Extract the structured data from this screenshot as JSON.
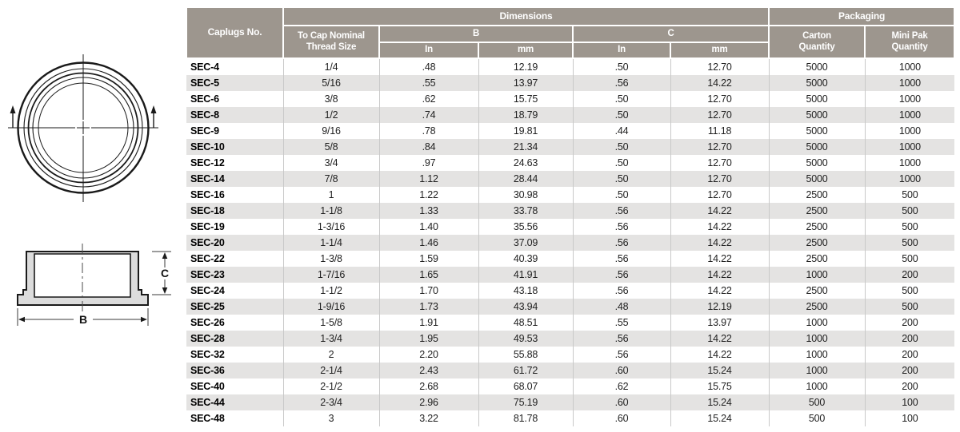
{
  "colors": {
    "header_bg": "#9d968e",
    "header_text": "#ffffff",
    "stripe": "#e4e3e2",
    "gridline": "#c9c9c9",
    "drawing_fill": "#dcdcdc"
  },
  "table": {
    "header": {
      "caplugs_no": "Caplugs No.",
      "dimensions": "Dimensions",
      "packaging": "Packaging",
      "thread_size": "To Cap Nominal\nThread Size",
      "b": "B",
      "c": "C",
      "in_b": "In",
      "mm_b": "mm",
      "in_c": "In",
      "mm_c": "mm",
      "carton": "Carton\nQuantity",
      "mini_pak": "Mini Pak\nQuantity"
    },
    "rows": [
      [
        "SEC-4",
        "1/4",
        ".48",
        "12.19",
        ".50",
        "12.70",
        "5000",
        "1000"
      ],
      [
        "SEC-5",
        "5/16",
        ".55",
        "13.97",
        ".56",
        "14.22",
        "5000",
        "1000"
      ],
      [
        "SEC-6",
        "3/8",
        ".62",
        "15.75",
        ".50",
        "12.70",
        "5000",
        "1000"
      ],
      [
        "SEC-8",
        "1/2",
        ".74",
        "18.79",
        ".50",
        "12.70",
        "5000",
        "1000"
      ],
      [
        "SEC-9",
        "9/16",
        ".78",
        "19.81",
        ".44",
        "11.18",
        "5000",
        "1000"
      ],
      [
        "SEC-10",
        "5/8",
        ".84",
        "21.34",
        ".50",
        "12.70",
        "5000",
        "1000"
      ],
      [
        "SEC-12",
        "3/4",
        ".97",
        "24.63",
        ".50",
        "12.70",
        "5000",
        "1000"
      ],
      [
        "SEC-14",
        "7/8",
        "1.12",
        "28.44",
        ".50",
        "12.70",
        "5000",
        "1000"
      ],
      [
        "SEC-16",
        "1",
        "1.22",
        "30.98",
        ".50",
        "12.70",
        "2500",
        "500"
      ],
      [
        "SEC-18",
        "1-1/8",
        "1.33",
        "33.78",
        ".56",
        "14.22",
        "2500",
        "500"
      ],
      [
        "SEC-19",
        "1-3/16",
        "1.40",
        "35.56",
        ".56",
        "14.22",
        "2500",
        "500"
      ],
      [
        "SEC-20",
        "1-1/4",
        "1.46",
        "37.09",
        ".56",
        "14.22",
        "2500",
        "500"
      ],
      [
        "SEC-22",
        "1-3/8",
        "1.59",
        "40.39",
        ".56",
        "14.22",
        "2500",
        "500"
      ],
      [
        "SEC-23",
        "1-7/16",
        "1.65",
        "41.91",
        ".56",
        "14.22",
        "1000",
        "200"
      ],
      [
        "SEC-24",
        "1-1/2",
        "1.70",
        "43.18",
        ".56",
        "14.22",
        "2500",
        "500"
      ],
      [
        "SEC-25",
        "1-9/16",
        "1.73",
        "43.94",
        ".48",
        "12.19",
        "2500",
        "500"
      ],
      [
        "SEC-26",
        "1-5/8",
        "1.91",
        "48.51",
        ".55",
        "13.97",
        "1000",
        "200"
      ],
      [
        "SEC-28",
        "1-3/4",
        "1.95",
        "49.53",
        ".56",
        "14.22",
        "1000",
        "200"
      ],
      [
        "SEC-32",
        "2",
        "2.20",
        "55.88",
        ".56",
        "14.22",
        "1000",
        "200"
      ],
      [
        "SEC-36",
        "2-1/4",
        "2.43",
        "61.72",
        ".60",
        "15.24",
        "1000",
        "200"
      ],
      [
        "SEC-40",
        "2-1/2",
        "2.68",
        "68.07",
        ".62",
        "15.75",
        "1000",
        "200"
      ],
      [
        "SEC-44",
        "2-3/4",
        "2.96",
        "75.19",
        ".60",
        "15.24",
        "500",
        "100"
      ],
      [
        "SEC-48",
        "3",
        "3.22",
        "81.78",
        ".60",
        "15.24",
        "500",
        "100"
      ]
    ]
  },
  "diagram": {
    "label_b": "B",
    "label_c": "C"
  }
}
